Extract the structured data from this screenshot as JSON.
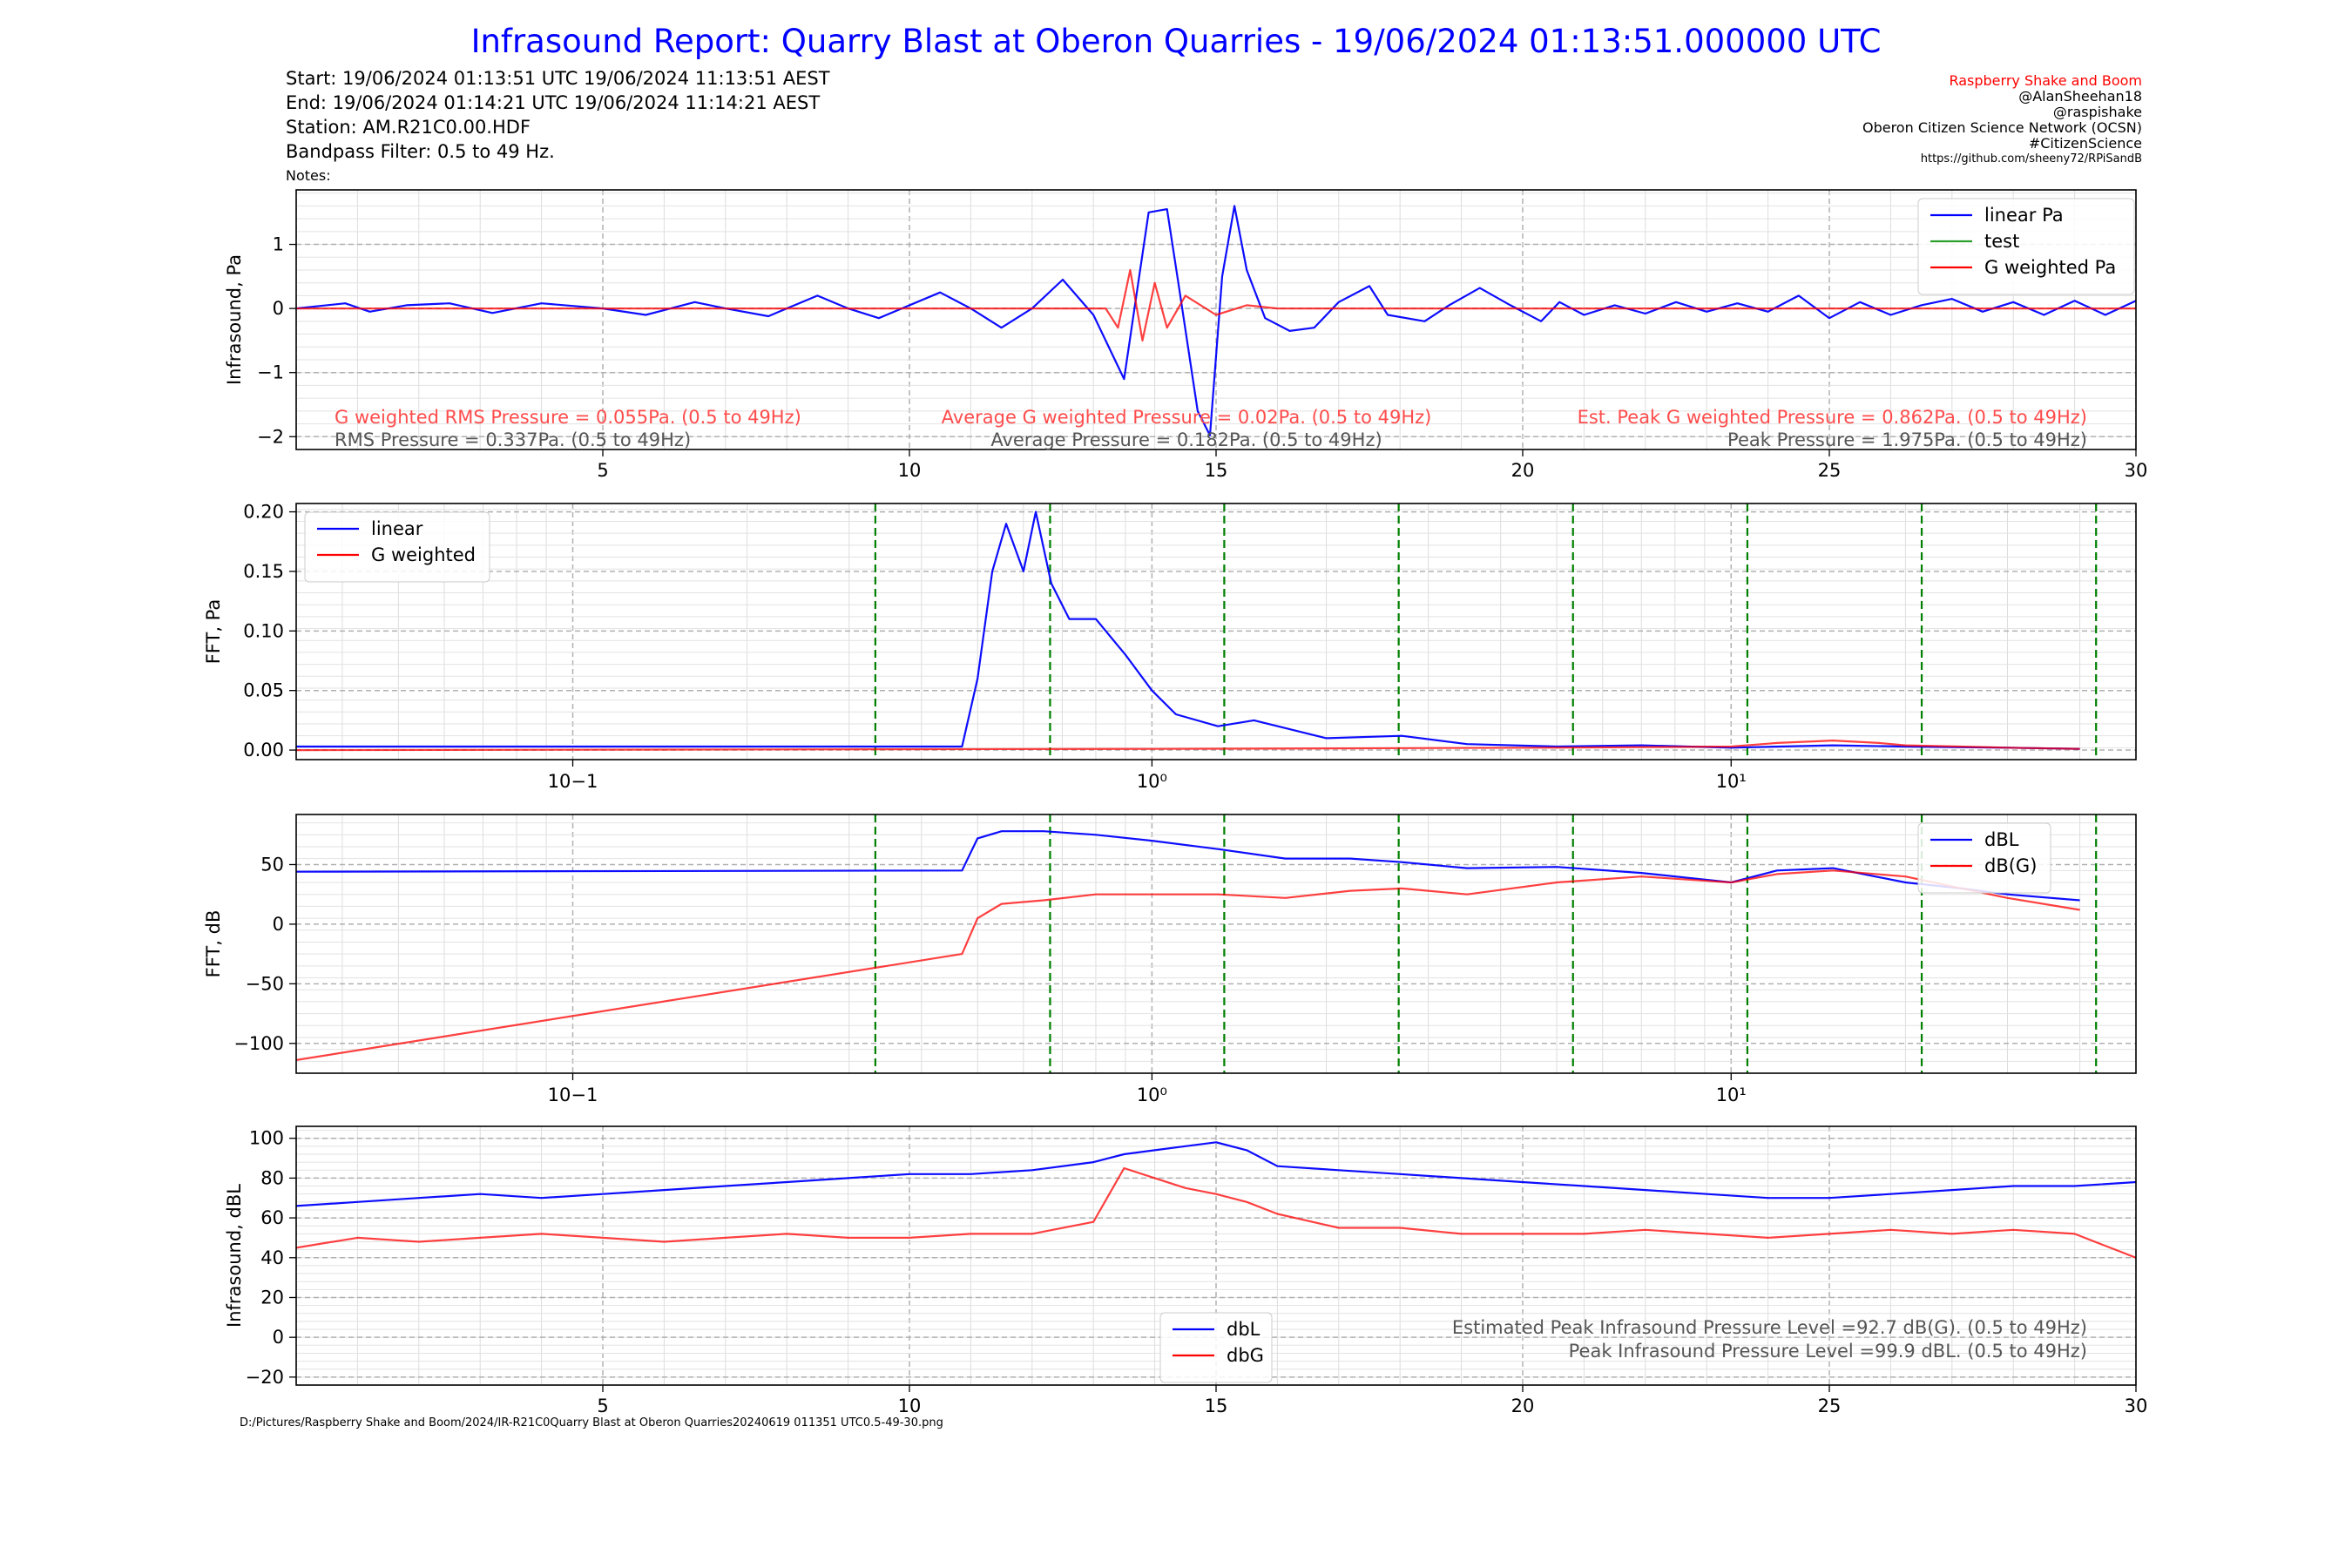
{
  "report": {
    "title": "Infrasound Report: Quarry Blast at Oberon Quarries - 19/06/2024 01:13:51.000000 UTC",
    "start_line": "Start: 19/06/2024 01:13:51 UTC   19/06/2024 11:13:51 AEST",
    "end_line": "End: 19/06/2024 01:14:21 UTC   19/06/2024 11:14:21 AEST",
    "station_line": "Station: AM.R21C0.00.HDF",
    "filter_line": "Bandpass Filter: 0.5 to 49 Hz.",
    "notes_label": "Notes:",
    "footer_path": "D:/Pictures/Raspberry Shake and Boom/2024/IR-R21C0Quarry Blast at Oberon Quarries20240619 011351 UTC0.5-49-30.png"
  },
  "credits": {
    "line1": "Raspberry Shake and Boom",
    "line1_color": "#ff0000",
    "line2": "@AlanSheehan18",
    "line3": "@raspishake",
    "line4": "Oberon Citizen Science Network (OCSN)",
    "line5": "#CitizenScience",
    "line6": "https://github.com/sheeny72/RPiSandB"
  },
  "colors": {
    "linear": "#0000ff",
    "g_weighted": "#ff0000",
    "test": "#2ca02c",
    "markers": "#008000",
    "annotation_red": "#ff4c4c",
    "annotation_grey": "#555555"
  },
  "chart_data": [
    {
      "type": "line",
      "ylabel": "Infrasound, Pa",
      "xlim": [
        0,
        30
      ],
      "ylim": [
        -2.2,
        1.85
      ],
      "xticks": [
        5,
        10,
        15,
        20,
        25,
        30
      ],
      "yticks": [
        -2,
        -1,
        0,
        1
      ],
      "legend": "top-right",
      "grid": true,
      "series": [
        {
          "name": "linear Pa",
          "color": "#0000ff",
          "x": [
            0,
            0.8,
            1.2,
            1.8,
            2.5,
            3.2,
            4,
            5,
            5.7,
            6.5,
            7,
            7.7,
            8.5,
            9,
            9.5,
            10.5,
            11,
            11.5,
            12,
            12.5,
            13,
            13.3,
            13.5,
            13.7,
            13.9,
            14.2,
            14.4,
            14.7,
            14.9,
            15.1,
            15.3,
            15.5,
            15.8,
            16.2,
            16.6,
            17,
            17.5,
            17.8,
            18.4,
            18.8,
            19.3,
            19.8,
            20.3,
            20.6,
            21,
            21.5,
            22,
            22.5,
            23,
            23.5,
            24,
            24.5,
            25,
            25.5,
            26,
            26.5,
            27,
            27.5,
            28,
            28.5,
            29,
            29.5,
            30
          ],
          "y": [
            0,
            0.08,
            -0.05,
            0.05,
            0.08,
            -0.07,
            0.08,
            0,
            -0.1,
            0.1,
            0,
            -0.12,
            0.2,
            0,
            -0.15,
            0.25,
            0,
            -0.3,
            0,
            0.45,
            -0.1,
            -0.7,
            -1.1,
            0.2,
            1.5,
            1.55,
            0.3,
            -1.6,
            -1.98,
            0.5,
            1.6,
            0.6,
            -0.15,
            -0.35,
            -0.3,
            0.1,
            0.35,
            -0.1,
            -0.2,
            0.05,
            0.32,
            0.05,
            -0.2,
            0.1,
            -0.1,
            0.05,
            -0.08,
            0.1,
            -0.05,
            0.08,
            -0.05,
            0.2,
            -0.15,
            0.1,
            -0.1,
            0.05,
            0.15,
            -0.05,
            0.1,
            -0.1,
            0.12,
            -0.1,
            0.12
          ]
        },
        {
          "name": "test",
          "color": "#2ca02c",
          "x": [],
          "y": []
        },
        {
          "name": "G weighted Pa",
          "color": "#ff0000",
          "x": [
            0,
            13.2,
            13.4,
            13.6,
            13.8,
            14,
            14.2,
            14.5,
            15,
            15.5,
            16,
            30
          ],
          "y": [
            0,
            0,
            -0.3,
            0.6,
            -0.5,
            0.4,
            -0.3,
            0.2,
            -0.1,
            0.05,
            0,
            0
          ]
        }
      ],
      "annotations": {
        "g_rms": "G weighted RMS Pressure = 0.055Pa. (0.5 to 49Hz)",
        "rms": "RMS Pressure = 0.337Pa. (0.5 to 49Hz)",
        "g_avg": "Average G weighted Pressure = 0.02Pa. (0.5 to 49Hz)",
        "avg": "Average Pressure = 0.182Pa. (0.5 to 49Hz)",
        "g_peak": "Est. Peak G weighted Pressure = 0.862Pa. (0.5 to 49Hz)",
        "peak": "Peak Pressure = 1.975Pa. (0.5 to 49Hz)"
      }
    },
    {
      "type": "line",
      "ylabel": "FFT, Pa",
      "xscale": "log",
      "xlim": [
        0.0333,
        50
      ],
      "ylim": [
        -0.008,
        0.207
      ],
      "yticks": [
        0.0,
        0.05,
        0.1,
        0.15,
        0.2
      ],
      "xticks": [
        0.1,
        1,
        10
      ],
      "xtick_labels": [
        "10−1",
        "10⁰",
        "10¹"
      ],
      "vlines": [
        0.333,
        0.667,
        1.333,
        2.667,
        5.333,
        10.667,
        21.333,
        42.667
      ],
      "legend": "top-left",
      "grid": true,
      "series": [
        {
          "name": "linear",
          "color": "#0000ff",
          "x": [
            0.0333,
            0.47,
            0.5,
            0.53,
            0.56,
            0.6,
            0.63,
            0.67,
            0.72,
            0.8,
            0.9,
            1.0,
            1.1,
            1.3,
            1.5,
            2.0,
            2.7,
            3.5,
            5,
            7,
            10,
            15,
            20,
            30,
            40
          ],
          "y": [
            0.003,
            0.003,
            0.06,
            0.15,
            0.19,
            0.15,
            0.2,
            0.14,
            0.11,
            0.11,
            0.08,
            0.05,
            0.03,
            0.02,
            0.025,
            0.01,
            0.012,
            0.005,
            0.003,
            0.004,
            0.002,
            0.004,
            0.003,
            0.002,
            0.001
          ]
        },
        {
          "name": "G weighted",
          "color": "#ff0000",
          "x": [
            0.0333,
            1,
            5,
            10,
            12,
            15,
            18,
            20,
            30,
            40
          ],
          "y": [
            0,
            0.001,
            0.002,
            0.003,
            0.006,
            0.008,
            0.006,
            0.004,
            0.002,
            0.001
          ]
        }
      ]
    },
    {
      "type": "line",
      "ylabel": "FFT, dB",
      "xscale": "log",
      "xlim": [
        0.0333,
        50
      ],
      "ylim": [
        -125,
        92
      ],
      "yticks": [
        -100,
        -50,
        0,
        50
      ],
      "xticks": [
        0.1,
        1,
        10
      ],
      "xtick_labels": [
        "10−1",
        "10⁰",
        "10¹"
      ],
      "vlines": [
        0.333,
        0.667,
        1.333,
        2.667,
        5.333,
        10.667,
        21.333,
        42.667
      ],
      "legend": "top-right",
      "grid": true,
      "series": [
        {
          "name": "dBL",
          "color": "#0000ff",
          "x": [
            0.0333,
            0.47,
            0.5,
            0.55,
            0.65,
            0.8,
            1,
            1.3,
            1.7,
            2.2,
            2.7,
            3.5,
            5,
            7,
            10,
            12,
            15,
            20,
            25,
            30,
            40
          ],
          "y": [
            44,
            45,
            72,
            78,
            78,
            75,
            70,
            63,
            55,
            55,
            52,
            47,
            48,
            43,
            35,
            45,
            47,
            35,
            30,
            25,
            20
          ]
        },
        {
          "name": "dB(G)",
          "color": "#ff0000",
          "x": [
            0.0333,
            0.47,
            0.5,
            0.55,
            0.65,
            0.8,
            1,
            1.3,
            1.7,
            2.2,
            2.7,
            3.5,
            5,
            7,
            10,
            12,
            15,
            20,
            25,
            30,
            40
          ],
          "y": [
            -114,
            -25,
            5,
            17,
            20,
            25,
            25,
            25,
            22,
            28,
            30,
            25,
            35,
            40,
            35,
            42,
            45,
            40,
            30,
            22,
            12
          ]
        }
      ]
    },
    {
      "type": "line",
      "ylabel": "Infrasound, dBL",
      "xlim": [
        0,
        30
      ],
      "ylim": [
        -24,
        106
      ],
      "xticks": [
        5,
        10,
        15,
        20,
        25,
        30
      ],
      "yticks": [
        -20,
        0,
        20,
        40,
        60,
        80,
        100
      ],
      "legend": "bottom-center",
      "grid": true,
      "series": [
        {
          "name": "dbL",
          "color": "#0000ff",
          "x": [
            0,
            1,
            2,
            3,
            4,
            5,
            6,
            7,
            8,
            9,
            10,
            11,
            12,
            13,
            13.5,
            14,
            14.5,
            15,
            15.5,
            16,
            17,
            18,
            19,
            20,
            21,
            22,
            23,
            24,
            25,
            26,
            27,
            28,
            29,
            30
          ],
          "y": [
            66,
            68,
            70,
            72,
            70,
            72,
            74,
            76,
            78,
            80,
            82,
            82,
            84,
            88,
            92,
            94,
            96,
            98,
            94,
            86,
            84,
            82,
            80,
            78,
            76,
            74,
            72,
            70,
            70,
            72,
            74,
            76,
            76,
            78
          ]
        },
        {
          "name": "dbG",
          "color": "#ff0000",
          "x": [
            0,
            1,
            2,
            3,
            4,
            5,
            6,
            7,
            8,
            9,
            10,
            11,
            12,
            13,
            13.5,
            14,
            14.5,
            15,
            15.5,
            16,
            17,
            18,
            19,
            20,
            21,
            22,
            23,
            24,
            25,
            26,
            27,
            28,
            29,
            30
          ],
          "y": [
            45,
            50,
            48,
            50,
            52,
            50,
            48,
            50,
            52,
            50,
            50,
            52,
            52,
            58,
            85,
            80,
            75,
            72,
            68,
            62,
            55,
            55,
            52,
            52,
            52,
            54,
            52,
            50,
            52,
            54,
            52,
            54,
            52,
            40
          ]
        }
      ],
      "annotations": {
        "est_peak_db": "Estimated Peak Infrasound Pressure Level =92.7 dB(G). (0.5 to 49Hz)",
        "peak_db": "Peak Infrasound Pressure Level =99.9 dBL. (0.5 to 49Hz)"
      }
    }
  ]
}
